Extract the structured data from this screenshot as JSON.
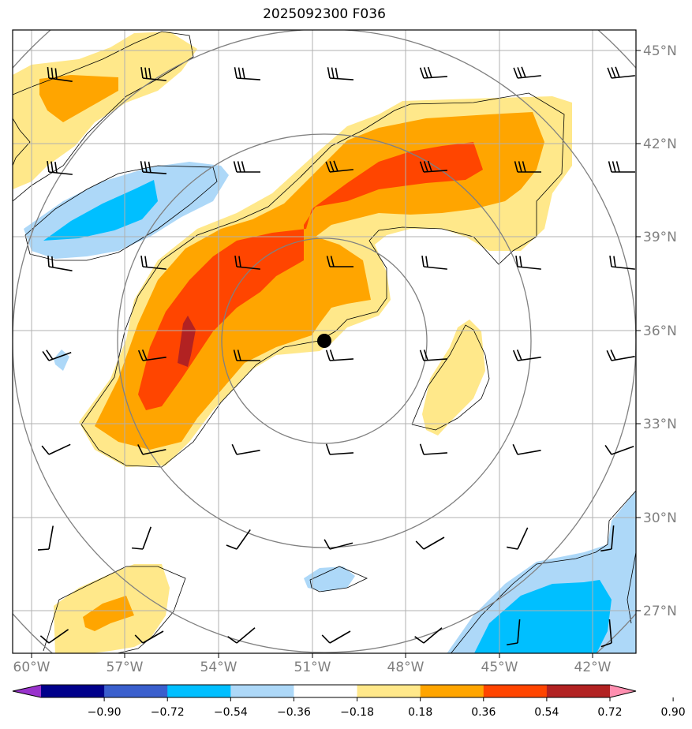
{
  "title": "2025092300 F036",
  "map": {
    "lon_labels": [
      "60°W",
      "57°W",
      "54°W",
      "51°W",
      "48°W",
      "45°W",
      "42°W"
    ],
    "lat_labels": [
      "45°N",
      "42°N",
      "39°N",
      "36°N",
      "33°N",
      "30°N",
      "27°N"
    ],
    "label_color": "#808080"
  },
  "colorbar": {
    "ticks": [
      "−0.90",
      "−0.72",
      "−0.54",
      "−0.36",
      "−0.18",
      "0.18",
      "0.36",
      "0.54",
      "0.72",
      "0.90"
    ],
    "colors": [
      "#9932cc",
      "#00008b",
      "#3a5fcd",
      "#00bfff",
      "#add8f8",
      "#ffffff",
      "#ffe88a",
      "#ffa500",
      "#ff4500",
      "#b22222",
      "#ff8fb0"
    ]
  },
  "fill_colors": {
    "pos1": "#ffe88a",
    "pos2": "#ffa500",
    "pos3": "#ff4500",
    "pos4": "#b22222",
    "neg1": "#add8f8",
    "neg2": "#00bfff"
  },
  "storm_center": {
    "lon": "50.6°W",
    "lat": "35.7°N"
  }
}
